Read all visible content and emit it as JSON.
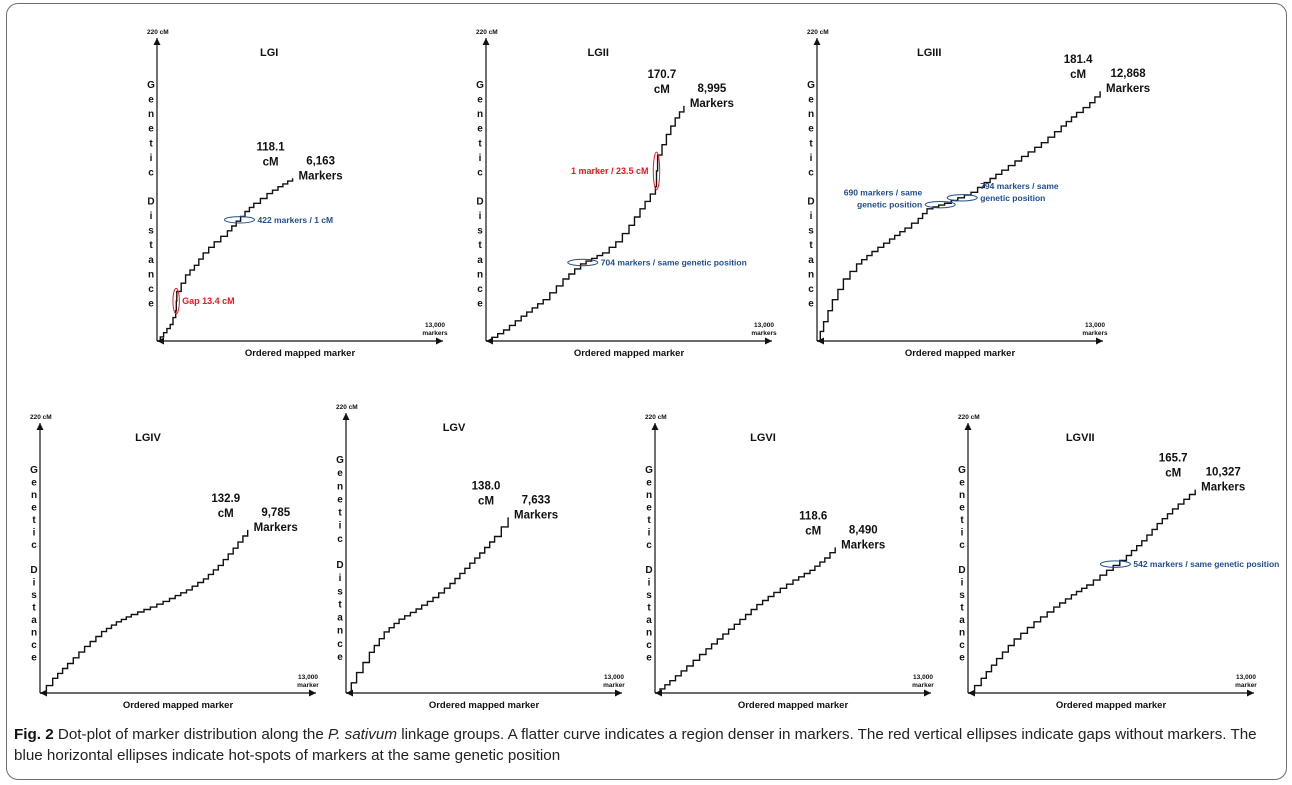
{
  "figure": {
    "caption": {
      "label": "Fig. 2",
      "text_1": " Dot-plot of marker distribution along the ",
      "species": "P. sativum",
      "text_2": " linkage groups. A flatter curve indicates a region denser in markers. The red vertical ellipses indicate gaps without markers. The blue horizontal ellipses indicate hot-spots of markers at the same genetic position"
    },
    "colors": {
      "curve": "#111111",
      "gap_annotation": "#e8191f",
      "hotspot_annotation": "#1f4e8c",
      "frame": "#6d6d6d"
    }
  },
  "chart_data": [
    {
      "type": "scatter",
      "title": "LGI",
      "ylabel": "Genetic Distance",
      "xlabel": "Ordered mapped marker",
      "ylim_label": "220 cM",
      "xlim_label_value": "13,000",
      "xlim_label_unit": "markers",
      "ylim": [
        0,
        220
      ],
      "xlim": [
        0,
        13000
      ],
      "end": {
        "distance": "118.1",
        "distance_unit": "cM",
        "markers": "6,163",
        "markers_unit": "Markers"
      },
      "curve": [
        [
          0,
          0
        ],
        [
          300,
          6
        ],
        [
          600,
          12
        ],
        [
          850,
          22
        ],
        [
          900,
          36
        ],
        [
          1300,
          48
        ],
        [
          1700,
          55
        ],
        [
          2100,
          64
        ],
        [
          2600,
          72
        ],
        [
          3200,
          80
        ],
        [
          3600,
          87
        ],
        [
          4000,
          94
        ],
        [
          4400,
          100
        ],
        [
          5000,
          107
        ],
        [
          5500,
          112
        ],
        [
          6163,
          118.1
        ]
      ],
      "annotations": [
        {
          "kind": "gap",
          "text": "Gap 13.4 cM",
          "marker": 870,
          "from": 22,
          "to": 36
        },
        {
          "kind": "hotspot",
          "text": "422  markers / 1 cM",
          "marker": 3750,
          "from": 88,
          "to": 89
        }
      ]
    },
    {
      "type": "scatter",
      "title": "LGII",
      "ylabel": "Genetic Distance",
      "xlabel": "Ordered mapped marker",
      "ylim_label": "220 cM",
      "xlim_label_value": "13,000",
      "xlim_label_unit": "markers",
      "ylim": [
        0,
        220
      ],
      "xlim": [
        0,
        13000
      ],
      "end": {
        "distance": "170.7",
        "distance_unit": "cM",
        "markers": "8,995",
        "markers_unit": "Markers"
      },
      "curve": [
        [
          0,
          0
        ],
        [
          800,
          8
        ],
        [
          1600,
          18
        ],
        [
          2600,
          30
        ],
        [
          3500,
          45
        ],
        [
          4300,
          56
        ],
        [
          5300,
          64
        ],
        [
          5900,
          72
        ],
        [
          6500,
          84
        ],
        [
          7000,
          96
        ],
        [
          7700,
          112
        ],
        [
          7800,
          135
        ],
        [
          8200,
          150
        ],
        [
          8600,
          162
        ],
        [
          8995,
          170.7
        ]
      ],
      "annotations": [
        {
          "kind": "gap",
          "text": "1 marker / 23.5 cM",
          "marker": 7750,
          "from": 112,
          "to": 135
        },
        {
          "kind": "hotspot",
          "text": "704 markers / same genetic position",
          "marker": 4400,
          "from": 57,
          "to": 57
        }
      ]
    },
    {
      "type": "scatter",
      "title": "LGIII",
      "ylabel": "Genetic Distance",
      "xlabel": "Ordered mapped marker",
      "ylim_label": "220 cM",
      "xlim_label_value": "13,000",
      "xlim_label_unit": "markers",
      "ylim": [
        0,
        220
      ],
      "xlim": [
        0,
        13000
      ],
      "end": {
        "distance": "181.4",
        "distance_unit": "cM",
        "markers": "12,868",
        "markers_unit": "Markers"
      },
      "curve": [
        [
          0,
          0
        ],
        [
          300,
          14
        ],
        [
          700,
          30
        ],
        [
          1200,
          45
        ],
        [
          1800,
          56
        ],
        [
          2500,
          65
        ],
        [
          3300,
          74
        ],
        [
          4000,
          82
        ],
        [
          4600,
          89
        ],
        [
          5000,
          96
        ],
        [
          5800,
          100
        ],
        [
          6400,
          104
        ],
        [
          7000,
          108
        ],
        [
          7600,
          115
        ],
        [
          8400,
          124
        ],
        [
          9300,
          134
        ],
        [
          10200,
          144
        ],
        [
          11100,
          156
        ],
        [
          11800,
          166
        ],
        [
          12400,
          173
        ],
        [
          12868,
          181.4
        ]
      ],
      "annotations": [
        {
          "kind": "hotspot",
          "text": "690 markers / same",
          "text_2": "genetic position",
          "marker": 5600,
          "from": 99,
          "to": 99
        },
        {
          "kind": "hotspot",
          "text": "794 markers / same",
          "text_2": "genetic position",
          "marker": 6600,
          "from": 104,
          "to": 104
        }
      ]
    },
    {
      "type": "scatter",
      "title": "LGIV",
      "ylabel": "Genetic Distance",
      "xlabel": "Ordered mapped marker",
      "ylim_label": "220 cM",
      "xlim_label_value": "13,000",
      "xlim_label_unit": "marker",
      "ylim": [
        0,
        220
      ],
      "xlim": [
        0,
        13000
      ],
      "end": {
        "distance": "132.9",
        "distance_unit": "cM",
        "markers": "9,785",
        "markers_unit": "Markers"
      },
      "curve": [
        [
          0,
          0
        ],
        [
          600,
          12
        ],
        [
          1300,
          24
        ],
        [
          2100,
          38
        ],
        [
          2900,
          50
        ],
        [
          3600,
          58
        ],
        [
          4300,
          64
        ],
        [
          5200,
          70
        ],
        [
          6100,
          77
        ],
        [
          6900,
          84
        ],
        [
          7700,
          93
        ],
        [
          8400,
          104
        ],
        [
          9100,
          118
        ],
        [
          9785,
          132.9
        ]
      ],
      "annotations": []
    },
    {
      "type": "scatter",
      "title": "LGV",
      "ylabel": "Genetic Distance",
      "xlabel": "Ordered mapped marker",
      "ylim_label": "220 cM",
      "xlim_label_value": "13,000",
      "xlim_label_unit": "marker",
      "ylim": [
        0,
        220
      ],
      "xlim": [
        0,
        13000
      ],
      "end": {
        "distance": "138.0",
        "distance_unit": "cM",
        "markers": "7,633",
        "markers_unit": "Markers"
      },
      "curve": [
        [
          0,
          0
        ],
        [
          500,
          16
        ],
        [
          1100,
          32
        ],
        [
          1800,
          48
        ],
        [
          2500,
          58
        ],
        [
          3300,
          66
        ],
        [
          4100,
          75
        ],
        [
          4900,
          86
        ],
        [
          5600,
          98
        ],
        [
          6300,
          110
        ],
        [
          7000,
          123
        ],
        [
          7633,
          138
        ]
      ],
      "annotations": []
    },
    {
      "type": "scatter",
      "title": "LGVI",
      "ylabel": "Genetic Distance",
      "xlabel": "Ordered mapped marker",
      "ylim_label": "220 cM",
      "xlim_label_value": "13,000",
      "xlim_label_unit": "marker",
      "ylim": [
        0,
        220
      ],
      "xlim": [
        0,
        13000
      ],
      "end": {
        "distance": "118.6",
        "distance_unit": "cM",
        "markers": "8,490",
        "markers_unit": "Markers"
      },
      "curve": [
        [
          0,
          0
        ],
        [
          700,
          10
        ],
        [
          1500,
          22
        ],
        [
          2400,
          36
        ],
        [
          3200,
          48
        ],
        [
          4000,
          60
        ],
        [
          4800,
          72
        ],
        [
          5600,
          82
        ],
        [
          6500,
          92
        ],
        [
          7300,
          100
        ],
        [
          8000,
          110
        ],
        [
          8490,
          118.6
        ]
      ],
      "annotations": []
    },
    {
      "type": "scatter",
      "title": "LGVII",
      "ylabel": "Genetic Distance",
      "xlabel": "Ordered mapped marker",
      "ylim_label": "220 cM",
      "xlim_label_value": "13,000",
      "xlim_label_unit": "marker",
      "ylim": [
        0,
        220
      ],
      "xlim": [
        0,
        13000
      ],
      "end": {
        "distance": "165.7",
        "distance_unit": "cM",
        "markers": "10,327",
        "markers_unit": "Markers"
      },
      "curve": [
        [
          0,
          0
        ],
        [
          600,
          12
        ],
        [
          1300,
          28
        ],
        [
          2100,
          44
        ],
        [
          3000,
          58
        ],
        [
          3900,
          70
        ],
        [
          4700,
          80
        ],
        [
          5400,
          88
        ],
        [
          6000,
          96
        ],
        [
          6600,
          104
        ],
        [
          7200,
          112
        ],
        [
          7900,
          124
        ],
        [
          8600,
          138
        ],
        [
          9300,
          150
        ],
        [
          10327,
          165.7
        ]
      ],
      "annotations": [
        {
          "kind": "hotspot",
          "text": "542 markers / same genetic position",
          "marker": 6700,
          "from": 105,
          "to": 105
        }
      ]
    }
  ]
}
